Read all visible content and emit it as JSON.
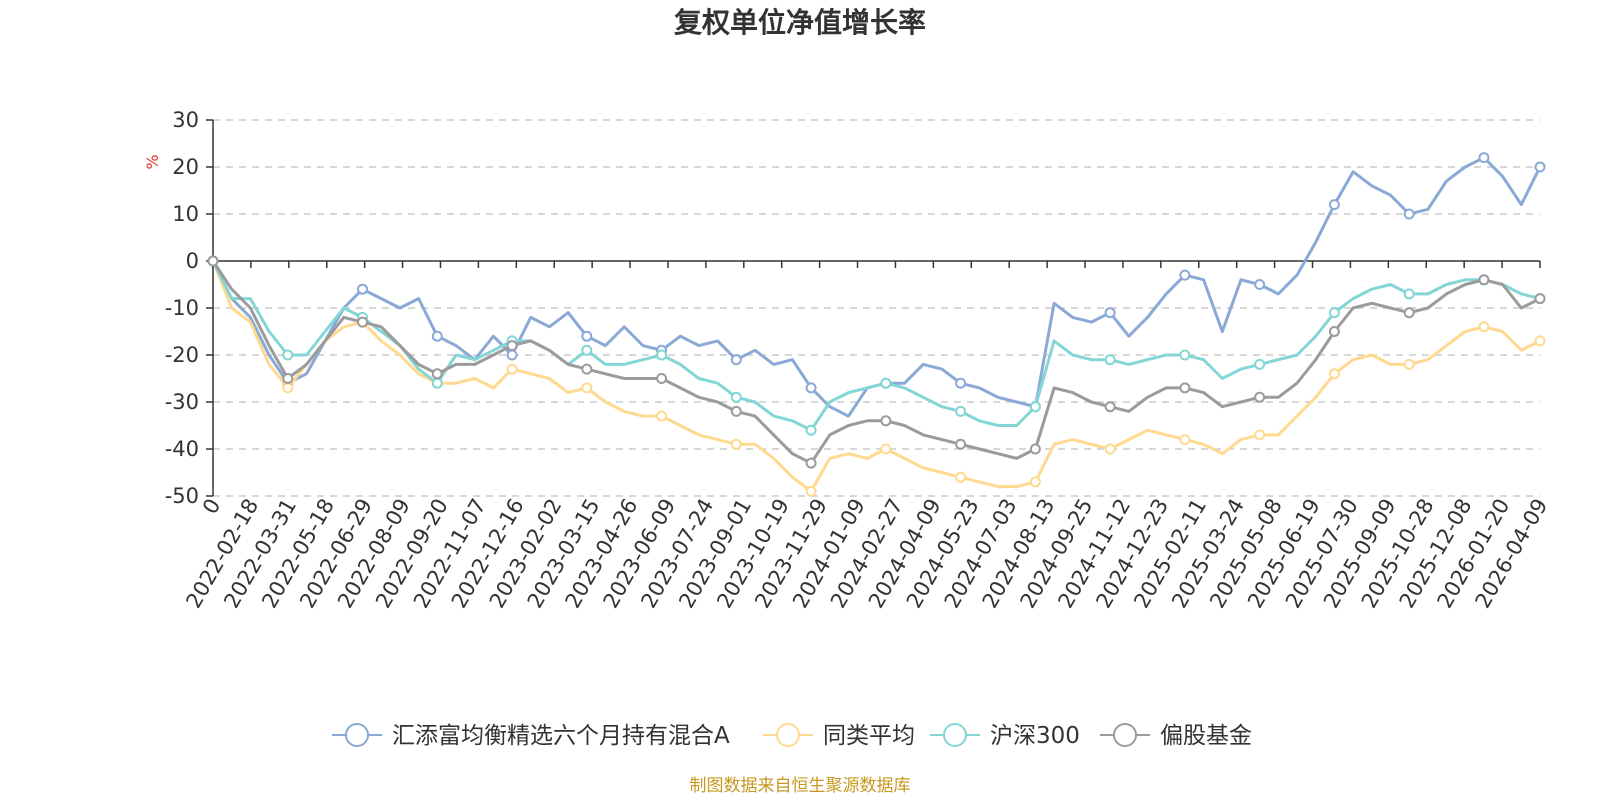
{
  "chart_data": {
    "type": "line",
    "title": "复权单位净值增长率",
    "ylabel": "%",
    "ylim": [
      -50,
      30
    ],
    "yticks": [
      30,
      20,
      10,
      0,
      -10,
      -20,
      -30,
      -40,
      -50
    ],
    "x_tick_labels": [
      "0",
      "2022-02-18",
      "2022-03-31",
      "2022-05-18",
      "2022-06-29",
      "2022-08-09",
      "2022-09-20",
      "2022-11-07",
      "2022-12-16",
      "2023-02-02",
      "2023-03-15",
      "2023-04-26",
      "2023-06-09",
      "2023-07-24",
      "2023-09-01",
      "2023-10-19",
      "2023-11-29",
      "2024-01-09",
      "2024-02-27",
      "2024-04-09",
      "2024-05-23",
      "2024-07-03",
      "2024-08-13",
      "2024-09-25",
      "2024-11-12",
      "2024-12-23",
      "2025-02-11",
      "2025-03-24",
      "2025-05-08",
      "2025-06-19",
      "2025-07-30",
      "2025-09-09",
      "2025-10-28",
      "2025-12-08",
      "2026-01-20",
      "2026-04-09"
    ],
    "grid": true,
    "legend_position": "bottom",
    "source_text": "制图数据来自恒生聚源数据库",
    "series": [
      {
        "name": "汇添富均衡精选六个月持有混合A",
        "color": "#8aa9d6",
        "values": [
          0,
          -8,
          -12,
          -20,
          -26,
          -24,
          -17,
          -10,
          -6,
          -8,
          -10,
          -8,
          -16,
          -18,
          -21,
          -16,
          -20,
          -12,
          -14,
          -11,
          -16,
          -18,
          -14,
          -18,
          -19,
          -16,
          -18,
          -17,
          -21,
          -19,
          -22,
          -21,
          -27,
          -31,
          -33,
          -27,
          -26,
          -26,
          -22,
          -23,
          -26,
          -27,
          -29,
          -30,
          -31,
          -9,
          -12,
          -13,
          -11,
          -16,
          -12,
          -7,
          -3,
          -4,
          -15,
          -4,
          -5,
          -7,
          -3,
          4,
          12,
          19,
          16,
          14,
          10,
          11,
          17,
          20,
          22,
          18,
          12,
          20
        ]
      },
      {
        "name": "同类平均",
        "color": "#ffd98f",
        "values": [
          0,
          -10,
          -13,
          -22,
          -27,
          -22,
          -17,
          -14,
          -13,
          -17,
          -20,
          -24,
          -26,
          -26,
          -25,
          -27,
          -23,
          -24,
          -25,
          -28,
          -27,
          -30,
          -32,
          -33,
          -33,
          -35,
          -37,
          -38,
          -39,
          -39,
          -42,
          -46,
          -49,
          -42,
          -41,
          -42,
          -40,
          -42,
          -44,
          -45,
          -46,
          -47,
          -48,
          -48,
          -47,
          -39,
          -38,
          -39,
          -40,
          -38,
          -36,
          -37,
          -38,
          -39,
          -41,
          -38,
          -37,
          -37,
          -33,
          -29,
          -24,
          -21,
          -20,
          -22,
          -22,
          -21,
          -18,
          -15,
          -14,
          -15,
          -19,
          -17
        ]
      },
      {
        "name": "沪深300",
        "color": "#84d6d6",
        "values": [
          0,
          -8,
          -8,
          -15,
          -20,
          -20,
          -15,
          -10,
          -12,
          -15,
          -18,
          -23,
          -26,
          -20,
          -21,
          -19,
          -17,
          -17,
          -19,
          -22,
          -19,
          -22,
          -22,
          -21,
          -20,
          -22,
          -25,
          -26,
          -29,
          -30,
          -33,
          -34,
          -36,
          -30,
          -28,
          -27,
          -26,
          -27,
          -29,
          -31,
          -32,
          -34,
          -35,
          -35,
          -31,
          -17,
          -20,
          -21,
          -21,
          -22,
          -21,
          -20,
          -20,
          -21,
          -25,
          -23,
          -22,
          -21,
          -20,
          -16,
          -11,
          -8,
          -6,
          -5,
          -7,
          -7,
          -5,
          -4,
          -4,
          -5,
          -7,
          -8
        ]
      },
      {
        "name": "偏股基金",
        "color": "#9b9b9b",
        "values": [
          0,
          -6,
          -10,
          -18,
          -25,
          -22,
          -17,
          -12,
          -13,
          -14,
          -18,
          -22,
          -24,
          -22,
          -22,
          -20,
          -18,
          -17,
          -19,
          -22,
          -23,
          -24,
          -25,
          -25,
          -25,
          -27,
          -29,
          -30,
          -32,
          -33,
          -37,
          -41,
          -43,
          -37,
          -35,
          -34,
          -34,
          -35,
          -37,
          -38,
          -39,
          -40,
          -41,
          -42,
          -40,
          -27,
          -28,
          -30,
          -31,
          -32,
          -29,
          -27,
          -27,
          -28,
          -31,
          -30,
          -29,
          -29,
          -26,
          -21,
          -15,
          -10,
          -9,
          -10,
          -11,
          -10,
          -7,
          -5,
          -4,
          -5,
          -10,
          -8
        ]
      }
    ]
  }
}
